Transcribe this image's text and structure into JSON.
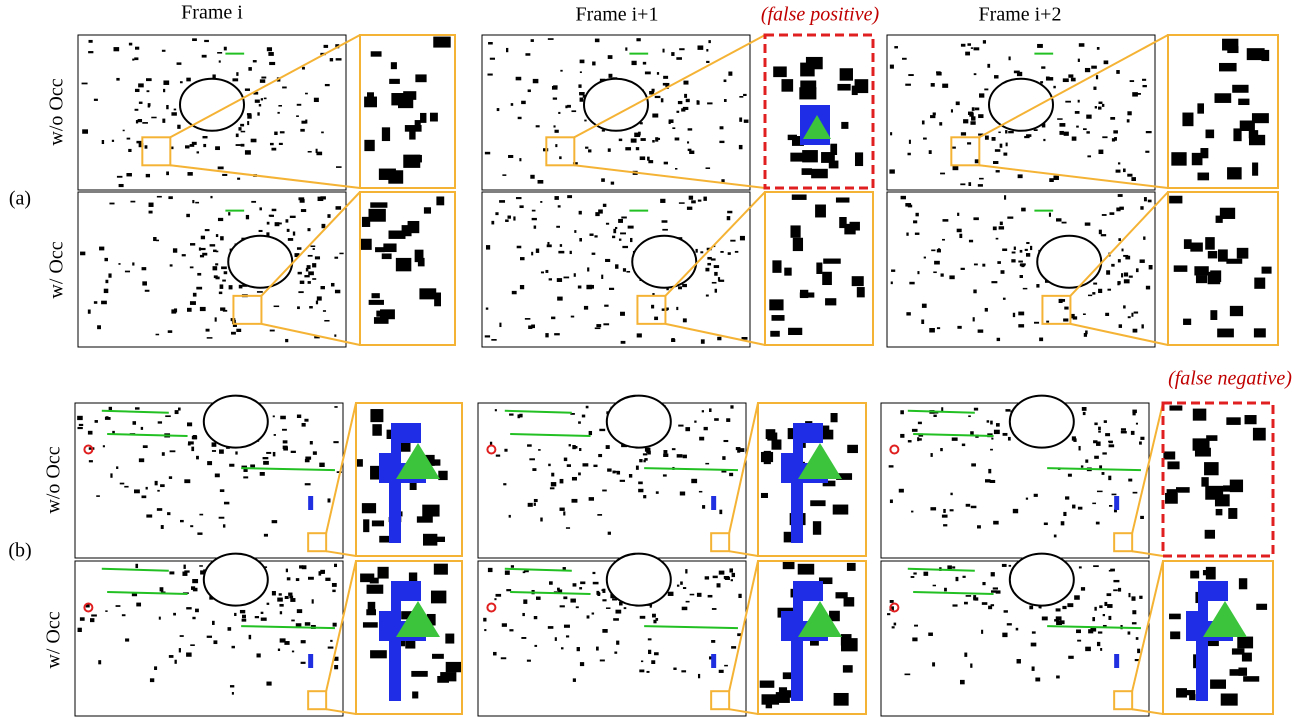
{
  "column_headers": [
    "Frame i",
    "Frame i+1",
    "Frame i+2"
  ],
  "annotations": {
    "false_positive": "(false positive)",
    "false_negative": "(false negative)"
  },
  "groups": [
    {
      "label": "(a)",
      "rows": [
        "w/o Occ",
        "w/ Occ"
      ]
    },
    {
      "label": "(b)",
      "rows": [
        "w/o Occ",
        "w/ Occ"
      ]
    }
  ]
}
